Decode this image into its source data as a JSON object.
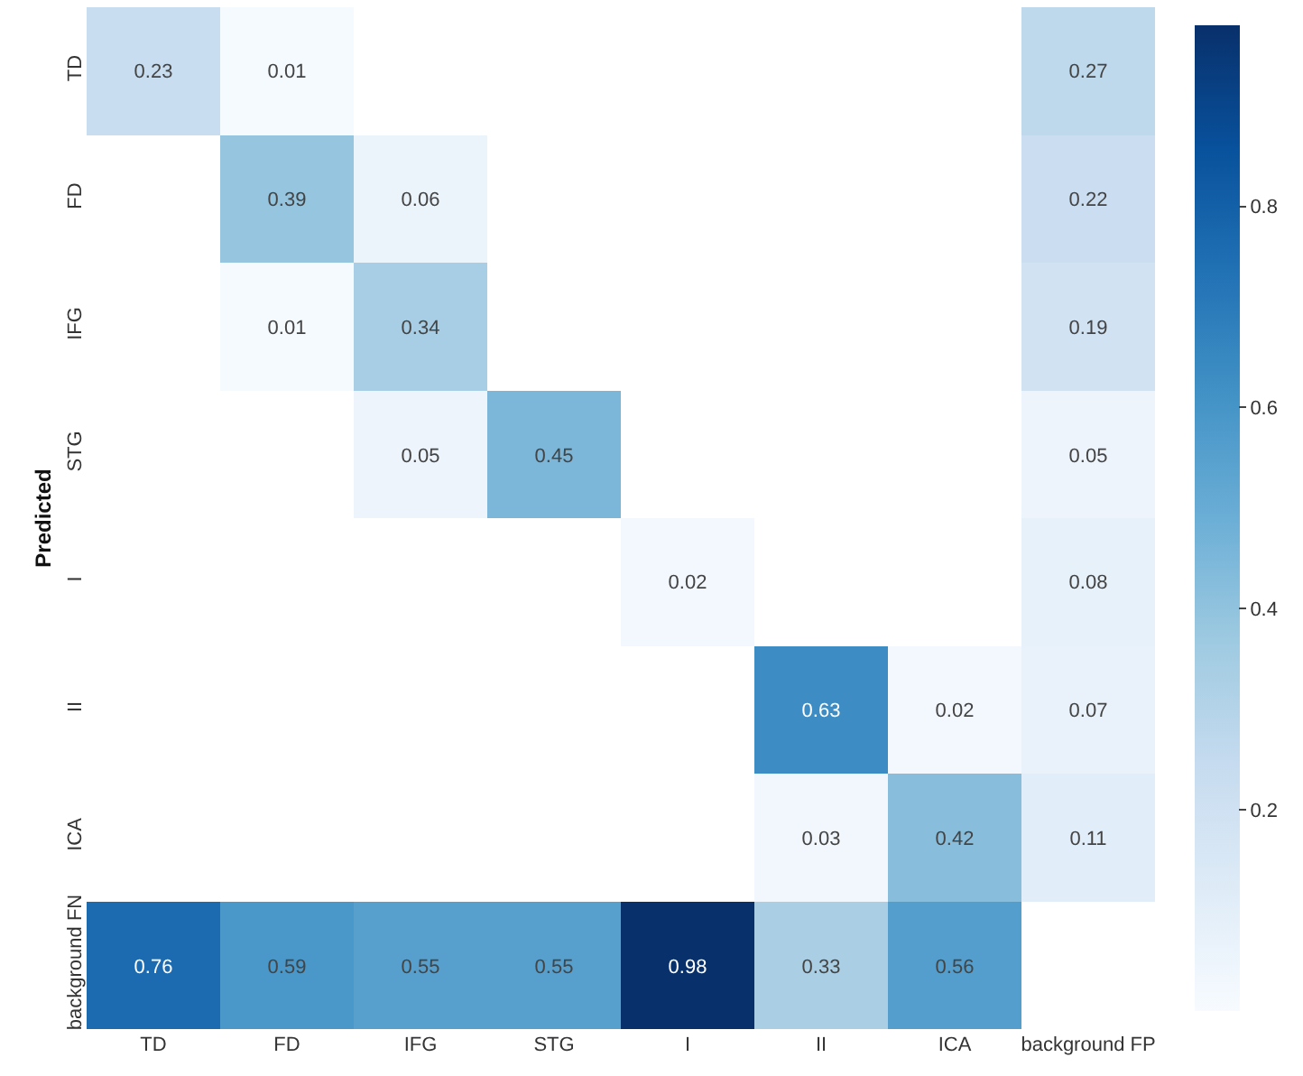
{
  "chart_data": {
    "type": "heatmap",
    "ylabel": "Predicted",
    "categories": [
      "TD",
      "FD",
      "IFG",
      "STG",
      "I",
      "II",
      "ICA",
      "background FP"
    ],
    "y_categories": [
      "TD",
      "FD",
      "IFG",
      "STG",
      "I",
      "II",
      "ICA",
      "background FN"
    ],
    "cells": [
      [
        0.23,
        0.01,
        null,
        null,
        null,
        null,
        null,
        0.27
      ],
      [
        null,
        0.39,
        0.06,
        null,
        null,
        null,
        null,
        0.22
      ],
      [
        null,
        0.01,
        0.34,
        null,
        null,
        null,
        null,
        0.19
      ],
      [
        null,
        null,
        0.05,
        0.45,
        null,
        null,
        null,
        0.05
      ],
      [
        null,
        null,
        null,
        null,
        0.02,
        null,
        null,
        0.08
      ],
      [
        null,
        null,
        null,
        null,
        null,
        0.63,
        0.02,
        0.07
      ],
      [
        null,
        null,
        null,
        null,
        null,
        0.03,
        0.42,
        0.11
      ],
      [
        0.76,
        0.59,
        0.55,
        0.55,
        0.98,
        0.33,
        0.56,
        null
      ]
    ],
    "data_labels": true,
    "clim": [
      0,
      0.98
    ],
    "cticks": [
      0.2,
      0.4,
      0.6,
      0.8
    ]
  }
}
